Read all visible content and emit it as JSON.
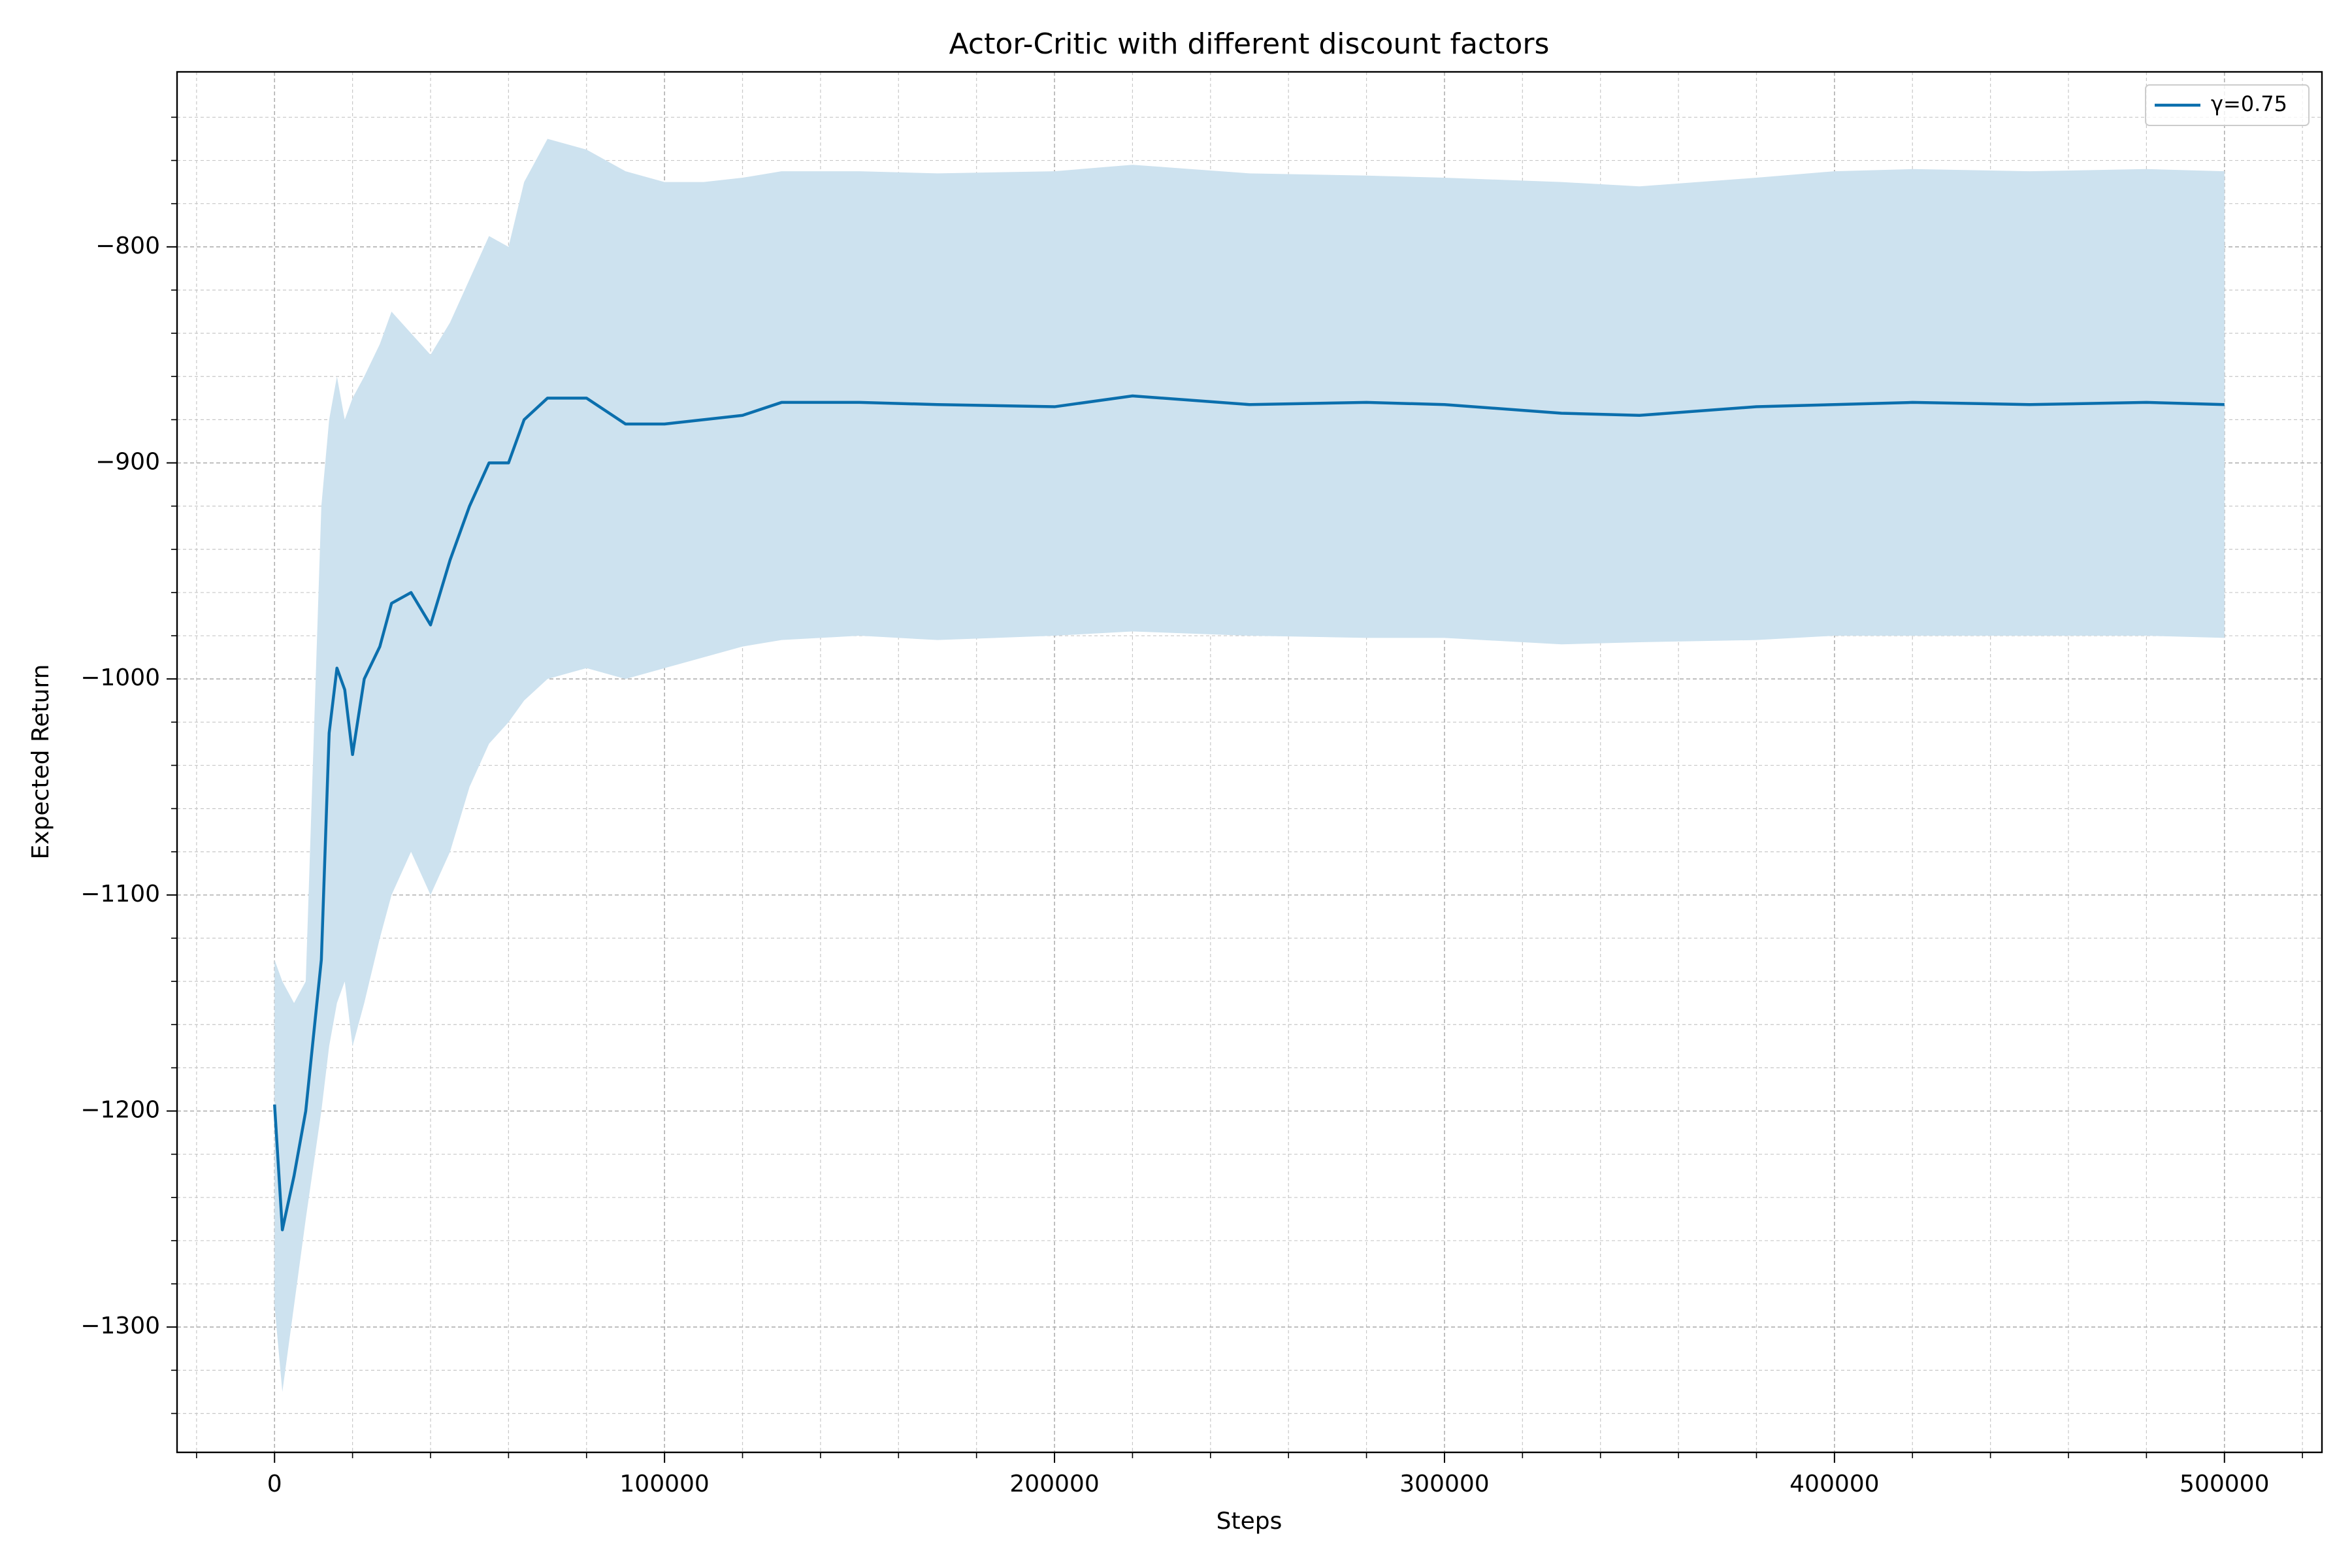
{
  "chart_data": {
    "type": "line",
    "title": "Actor-Critic with different discount factors",
    "x_label": "Steps",
    "y_label": "Expected Return",
    "x": [
      0,
      2000,
      5000,
      8000,
      12000,
      14000,
      16000,
      18000,
      20000,
      23000,
      27000,
      30000,
      35000,
      40000,
      45000,
      50000,
      55000,
      60000,
      64000,
      70000,
      80000,
      90000,
      100000,
      110000,
      120000,
      130000,
      150000,
      170000,
      200000,
      220000,
      250000,
      280000,
      300000,
      330000,
      350000,
      380000,
      400000,
      420000,
      450000,
      480000,
      500000
    ],
    "series": [
      {
        "name": "γ=0.75",
        "color": "#0b6fad",
        "band_color": "#cde2ef",
        "values": [
          -1197,
          -1255,
          -1230,
          -1200,
          -1130,
          -1025,
          -995,
          -1005,
          -1035,
          -1000,
          -985,
          -965,
          -960,
          -975,
          -945,
          -920,
          -900,
          -900,
          -880,
          -870,
          -870,
          -882,
          -882,
          -880,
          -878,
          -872,
          -872,
          -873,
          -874,
          -869,
          -873,
          -872,
          -873,
          -877,
          -878,
          -874,
          -873,
          -872,
          -873,
          -872,
          -873
        ],
        "upper": [
          -1130,
          -1140,
          -1150,
          -1140,
          -920,
          -880,
          -860,
          -880,
          -870,
          -860,
          -845,
          -830,
          -840,
          -850,
          -835,
          -815,
          -795,
          -800,
          -770,
          -750,
          -755,
          -765,
          -770,
          -770,
          -768,
          -765,
          -765,
          -766,
          -765,
          -762,
          -766,
          -767,
          -768,
          -770,
          -772,
          -768,
          -765,
          -764,
          -765,
          -764,
          -765
        ],
        "lower": [
          -1290,
          -1330,
          -1290,
          -1250,
          -1200,
          -1170,
          -1150,
          -1140,
          -1170,
          -1150,
          -1120,
          -1100,
          -1080,
          -1100,
          -1080,
          -1050,
          -1030,
          -1020,
          -1010,
          -1000,
          -995,
          -1000,
          -995,
          -990,
          -985,
          -982,
          -980,
          -982,
          -980,
          -978,
          -980,
          -981,
          -981,
          -984,
          -983,
          -982,
          -980,
          -980,
          -980,
          -980,
          -981
        ]
      }
    ],
    "xlim": [
      -25000,
      525000
    ],
    "ylim": [
      -1358,
      -719
    ],
    "xticks": [
      0,
      100000,
      200000,
      300000,
      400000,
      500000
    ],
    "yticks": [
      {
        "value": -1300,
        "label": "−1300"
      },
      {
        "value": -1200,
        "label": "−1200"
      },
      {
        "value": -1100,
        "label": "−1100"
      },
      {
        "value": -1000,
        "label": "−1000"
      },
      {
        "value": -900,
        "label": "−900"
      },
      {
        "value": -800,
        "label": "−800"
      }
    ],
    "xminorticks": [
      -20000,
      20000,
      40000,
      60000,
      80000,
      120000,
      140000,
      160000,
      180000,
      220000,
      240000,
      260000,
      280000,
      320000,
      340000,
      360000,
      380000,
      420000,
      440000,
      460000,
      480000,
      520000
    ],
    "yminorticks": [
      -1340,
      -1320,
      -1280,
      -1260,
      -1240,
      -1220,
      -1180,
      -1160,
      -1140,
      -1120,
      -1080,
      -1060,
      -1040,
      -1020,
      -980,
      -960,
      -940,
      -920,
      -880,
      -860,
      -840,
      -820,
      -780,
      -760,
      -740
    ],
    "grid": true,
    "legend": "upper right"
  }
}
